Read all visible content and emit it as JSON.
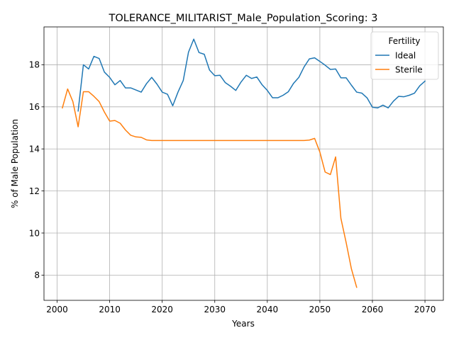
{
  "chart_data": {
    "type": "line",
    "title": "TOLERANCE_MILITARIST_Male_Population_Scoring: 3",
    "xlabel": "Years",
    "ylabel": "% of Male Population",
    "xlim": [
      1997.5,
      2073.5
    ],
    "ylim": [
      6.8,
      19.8
    ],
    "xticks": [
      2000,
      2010,
      2020,
      2030,
      2040,
      2050,
      2060,
      2070
    ],
    "yticks": [
      8,
      10,
      12,
      14,
      16,
      18
    ],
    "grid": true,
    "legend": {
      "title": "Fertility",
      "position": "top-right"
    },
    "series": [
      {
        "name": "Ideal",
        "color": "#1f77b4",
        "x": [
          2004,
          2005,
          2006,
          2007,
          2008,
          2009,
          2010,
          2011,
          2012,
          2013,
          2014,
          2015,
          2016,
          2017,
          2018,
          2019,
          2020,
          2021,
          2022,
          2023,
          2024,
          2025,
          2026,
          2027,
          2028,
          2029,
          2030,
          2031,
          2032,
          2033,
          2034,
          2035,
          2036,
          2037,
          2038,
          2039,
          2040,
          2041,
          2042,
          2043,
          2044,
          2045,
          2046,
          2047,
          2048,
          2049,
          2050,
          2051,
          2052,
          2053,
          2054,
          2055,
          2056,
          2057,
          2058,
          2059,
          2060,
          2061,
          2062,
          2063,
          2064,
          2065,
          2066,
          2067,
          2068,
          2069,
          2070
        ],
        "values": [
          15.8,
          18.0,
          17.8,
          18.4,
          18.3,
          17.65,
          17.4,
          17.05,
          17.25,
          16.9,
          16.9,
          16.8,
          16.7,
          17.1,
          17.4,
          17.08,
          16.7,
          16.6,
          16.05,
          16.7,
          17.25,
          18.6,
          19.22,
          18.58,
          18.5,
          17.75,
          17.48,
          17.5,
          17.15,
          16.98,
          16.78,
          17.18,
          17.5,
          17.35,
          17.42,
          17.05,
          16.78,
          16.43,
          16.43,
          16.55,
          16.72,
          17.12,
          17.4,
          17.9,
          18.28,
          18.33,
          18.16,
          17.98,
          17.78,
          17.8,
          17.38,
          17.38,
          17.03,
          16.7,
          16.65,
          16.42,
          15.98,
          15.95,
          16.08,
          15.95,
          16.27,
          16.5,
          16.48,
          16.55,
          16.65,
          17.0,
          17.22
        ]
      },
      {
        "name": "Sterile",
        "color": "#ff7f0e",
        "x": [
          2001,
          2002,
          2003,
          2004,
          2005,
          2006,
          2007,
          2008,
          2009,
          2010,
          2011,
          2012,
          2013,
          2014,
          2015,
          2016,
          2017,
          2018,
          2019,
          2020,
          2021,
          2022,
          2023,
          2024,
          2025,
          2026,
          2027,
          2028,
          2029,
          2030,
          2031,
          2032,
          2033,
          2034,
          2035,
          2036,
          2037,
          2038,
          2039,
          2040,
          2041,
          2042,
          2043,
          2044,
          2045,
          2046,
          2047,
          2048,
          2049,
          2050,
          2051,
          2052,
          2053,
          2054,
          2055,
          2056,
          2057
        ],
        "values": [
          15.95,
          16.85,
          16.25,
          15.05,
          16.72,
          16.72,
          16.5,
          16.25,
          15.75,
          15.32,
          15.35,
          15.22,
          14.9,
          14.65,
          14.57,
          14.55,
          14.43,
          14.4,
          14.4,
          14.4,
          14.4,
          14.4,
          14.4,
          14.4,
          14.4,
          14.4,
          14.4,
          14.4,
          14.4,
          14.4,
          14.4,
          14.4,
          14.4,
          14.4,
          14.4,
          14.4,
          14.4,
          14.4,
          14.4,
          14.4,
          14.4,
          14.4,
          14.4,
          14.4,
          14.4,
          14.4,
          14.4,
          14.42,
          14.5,
          13.85,
          12.9,
          12.78,
          13.62,
          10.7,
          9.55,
          8.3,
          7.42
        ]
      }
    ]
  }
}
